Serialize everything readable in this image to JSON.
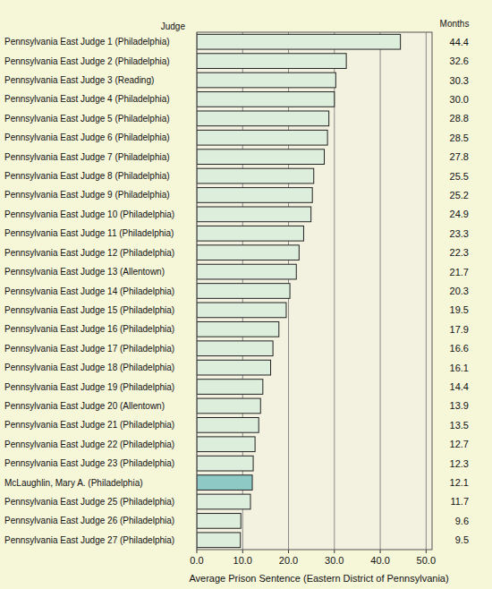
{
  "chart_data": {
    "type": "bar",
    "orientation": "horizontal",
    "ylabel": "Judge",
    "xlabel": "Average Prison Sentence (Eastern District of Pennsylvania)",
    "annotations": [
      {
        "text": "Months"
      }
    ],
    "categories": [
      "Pennsylvania East Judge 1 (Philadelphia)",
      "Pennsylvania East Judge 2 (Philadelphia)",
      "Pennsylvania East Judge 3 (Reading)",
      "Pennsylvania East Judge 4 (Philadelphia)",
      "Pennsylvania East Judge 5 (Philadelphia)",
      "Pennsylvania East Judge 6 (Philadelphia)",
      "Pennsylvania East Judge 7 (Philadelphia)",
      "Pennsylvania East Judge 8 (Philadelphia)",
      "Pennsylvania East Judge 9 (Philadelphia)",
      "Pennsylvania East Judge 10 (Philadelphia)",
      "Pennsylvania East Judge 11 (Philadelphia)",
      "Pennsylvania East Judge 12 (Philadelphia)",
      "Pennsylvania East Judge 13 (Allentown)",
      "Pennsylvania East Judge 14 (Philadelphia)",
      "Pennsylvania East Judge 15 (Philadelphia)",
      "Pennsylvania East Judge 16 (Philadelphia)",
      "Pennsylvania East Judge 17 (Philadelphia)",
      "Pennsylvania East Judge 18 (Philadelphia)",
      "Pennsylvania East Judge 19 (Philadelphia)",
      "Pennsylvania East Judge 20 (Allentown)",
      "Pennsylvania East Judge 21 (Philadelphia)",
      "Pennsylvania East Judge 22 (Philadelphia)",
      "Pennsylvania East Judge 23 (Philadelphia)",
      "McLaughlin, Mary A. (Philadelphia)",
      "Pennsylvania East Judge 25 (Philadelphia)",
      "Pennsylvania East Judge 26 (Philadelphia)",
      "Pennsylvania East Judge 27 (Philadelphia)"
    ],
    "values": [
      44.4,
      32.6,
      30.3,
      30.0,
      28.8,
      28.5,
      27.8,
      25.5,
      25.2,
      24.9,
      23.3,
      22.3,
      21.7,
      20.3,
      19.5,
      17.9,
      16.6,
      16.1,
      14.4,
      13.9,
      13.5,
      12.7,
      12.3,
      12.1,
      11.7,
      9.6,
      9.5
    ],
    "value_labels": [
      "44.4",
      "32.6",
      "30.3",
      "30.0",
      "28.8",
      "28.5",
      "27.8",
      "25.5",
      "25.2",
      "24.9",
      "23.3",
      "22.3",
      "21.7",
      "20.3",
      "19.5",
      "17.9",
      "16.6",
      "16.1",
      "14.4",
      "13.9",
      "13.5",
      "12.7",
      "12.3",
      "12.1",
      "11.7",
      "9.6",
      "9.5"
    ],
    "data_labels": true,
    "color": "#ddeedd",
    "colors": [
      "#ddeedd",
      "#ddeedd",
      "#ddeedd",
      "#ddeedd",
      "#ddeedd",
      "#ddeedd",
      "#ddeedd",
      "#ddeedd",
      "#ddeedd",
      "#ddeedd",
      "#ddeedd",
      "#ddeedd",
      "#ddeedd",
      "#ddeedd",
      "#ddeedd",
      "#ddeedd",
      "#ddeedd",
      "#ddeedd",
      "#ddeedd",
      "#ddeedd",
      "#ddeedd",
      "#ddeedd",
      "#ddeedd",
      "#8ec9c5",
      "#ddeedd",
      "#ddeedd",
      "#ddeedd"
    ],
    "xlim": [
      0,
      51.3
    ],
    "xticks": [
      {
        "value": 0,
        "label": "0.0"
      },
      {
        "value": 10,
        "label": "10.0"
      },
      {
        "value": 20,
        "label": "20.0"
      },
      {
        "value": 30,
        "label": "30.0"
      },
      {
        "value": 40,
        "label": "40.0"
      },
      {
        "value": 50,
        "label": "50.0"
      }
    ],
    "grid": true
  }
}
